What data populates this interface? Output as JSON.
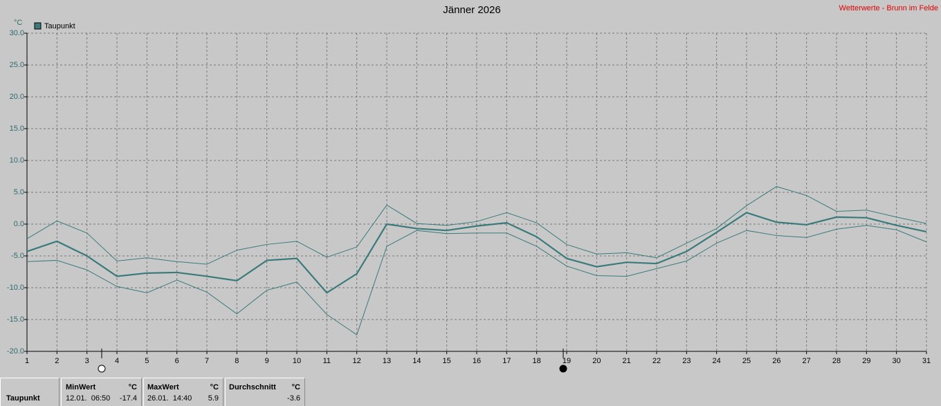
{
  "chart_data": {
    "type": "line",
    "title": "Jänner 2026",
    "subtitle": "Wetterwerte - Brunn im Felde",
    "y_label": "°C",
    "x": [
      1,
      2,
      3,
      4,
      5,
      6,
      7,
      8,
      9,
      10,
      11,
      12,
      13,
      14,
      15,
      16,
      17,
      18,
      19,
      20,
      21,
      22,
      23,
      24,
      25,
      26,
      27,
      28,
      29,
      30,
      31
    ],
    "xlim": [
      1,
      31
    ],
    "xticks": [
      1,
      2,
      3,
      4,
      5,
      6,
      7,
      8,
      9,
      10,
      11,
      12,
      13,
      14,
      15,
      16,
      17,
      18,
      19,
      20,
      21,
      22,
      23,
      24,
      25,
      26,
      27,
      28,
      29,
      30,
      31
    ],
    "ylim": [
      -20,
      30
    ],
    "yticks": [
      {
        "value": -20,
        "label": "-20.0"
      },
      {
        "value": -15,
        "label": "-15.0"
      },
      {
        "value": -10,
        "label": "-10.0"
      },
      {
        "value": -5,
        "label": "-5.0"
      },
      {
        "value": 0,
        "label": "0.0"
      },
      {
        "value": 5,
        "label": "5.0"
      },
      {
        "value": 10,
        "label": "10.0"
      },
      {
        "value": 15,
        "label": "15.0"
      },
      {
        "value": 20,
        "label": "20.0"
      },
      {
        "value": 25,
        "label": "25.0"
      },
      {
        "value": 30,
        "label": "30.0"
      }
    ],
    "grid": true,
    "series": [
      {
        "name": "Taupunkt",
        "color": "#3a7a7a",
        "values": [
          -4.3,
          -2.7,
          -5,
          -8.2,
          -7.7,
          -7.6,
          -8.2,
          -8.9,
          -5.7,
          -5.4,
          -10.8,
          -7.8,
          0,
          -0.7,
          -1,
          -0.3,
          0.2,
          -2,
          -5.4,
          -6.7,
          -6,
          -6.2,
          -4.3,
          -1.3,
          1.8,
          0.3,
          -0.1,
          1.1,
          1,
          -0.2,
          -1.2
        ]
      },
      {
        "color": "#3a7a7a",
        "values": [
          -2.3,
          0.5,
          -1.4,
          -5.8,
          -5.3,
          -5.9,
          -6.3,
          -4.1,
          -3.2,
          -2.7,
          -5.2,
          -3.6,
          3,
          0.1,
          -0.2,
          0.4,
          1.8,
          0.2,
          -3.2,
          -4.7,
          -4.5,
          -5.3,
          -3,
          -0.7,
          2.9,
          5.9,
          4.5,
          2,
          2.2,
          1.1,
          0.1
        ]
      },
      {
        "color": "#3a7a7a",
        "values": [
          -5.9,
          -5.7,
          -7.2,
          -9.8,
          -10.8,
          -8.8,
          -10.7,
          -14.1,
          -10.4,
          -9.1,
          -14.2,
          -17.4,
          -3.5,
          -1,
          -1.5,
          -1.4,
          -1.4,
          -3.5,
          -6.6,
          -8.1,
          -8.2,
          -7,
          -5.8,
          -3,
          -1,
          -1.8,
          -2.1,
          -0.8,
          -0.2,
          -0.9,
          -2.8
        ]
      }
    ]
  },
  "stats": {
    "label": "Taupunkt",
    "min": {
      "title": "MinWert",
      "unit": "°C",
      "time": "12.01.  06:50",
      "value": -17.4
    },
    "max": {
      "title": "MaxWert",
      "unit": "°C",
      "time": "26.01.  14:40",
      "value": 5.9
    },
    "avg": {
      "title": "Durchschnitt",
      "unit": "°C",
      "value": -3.6
    }
  }
}
